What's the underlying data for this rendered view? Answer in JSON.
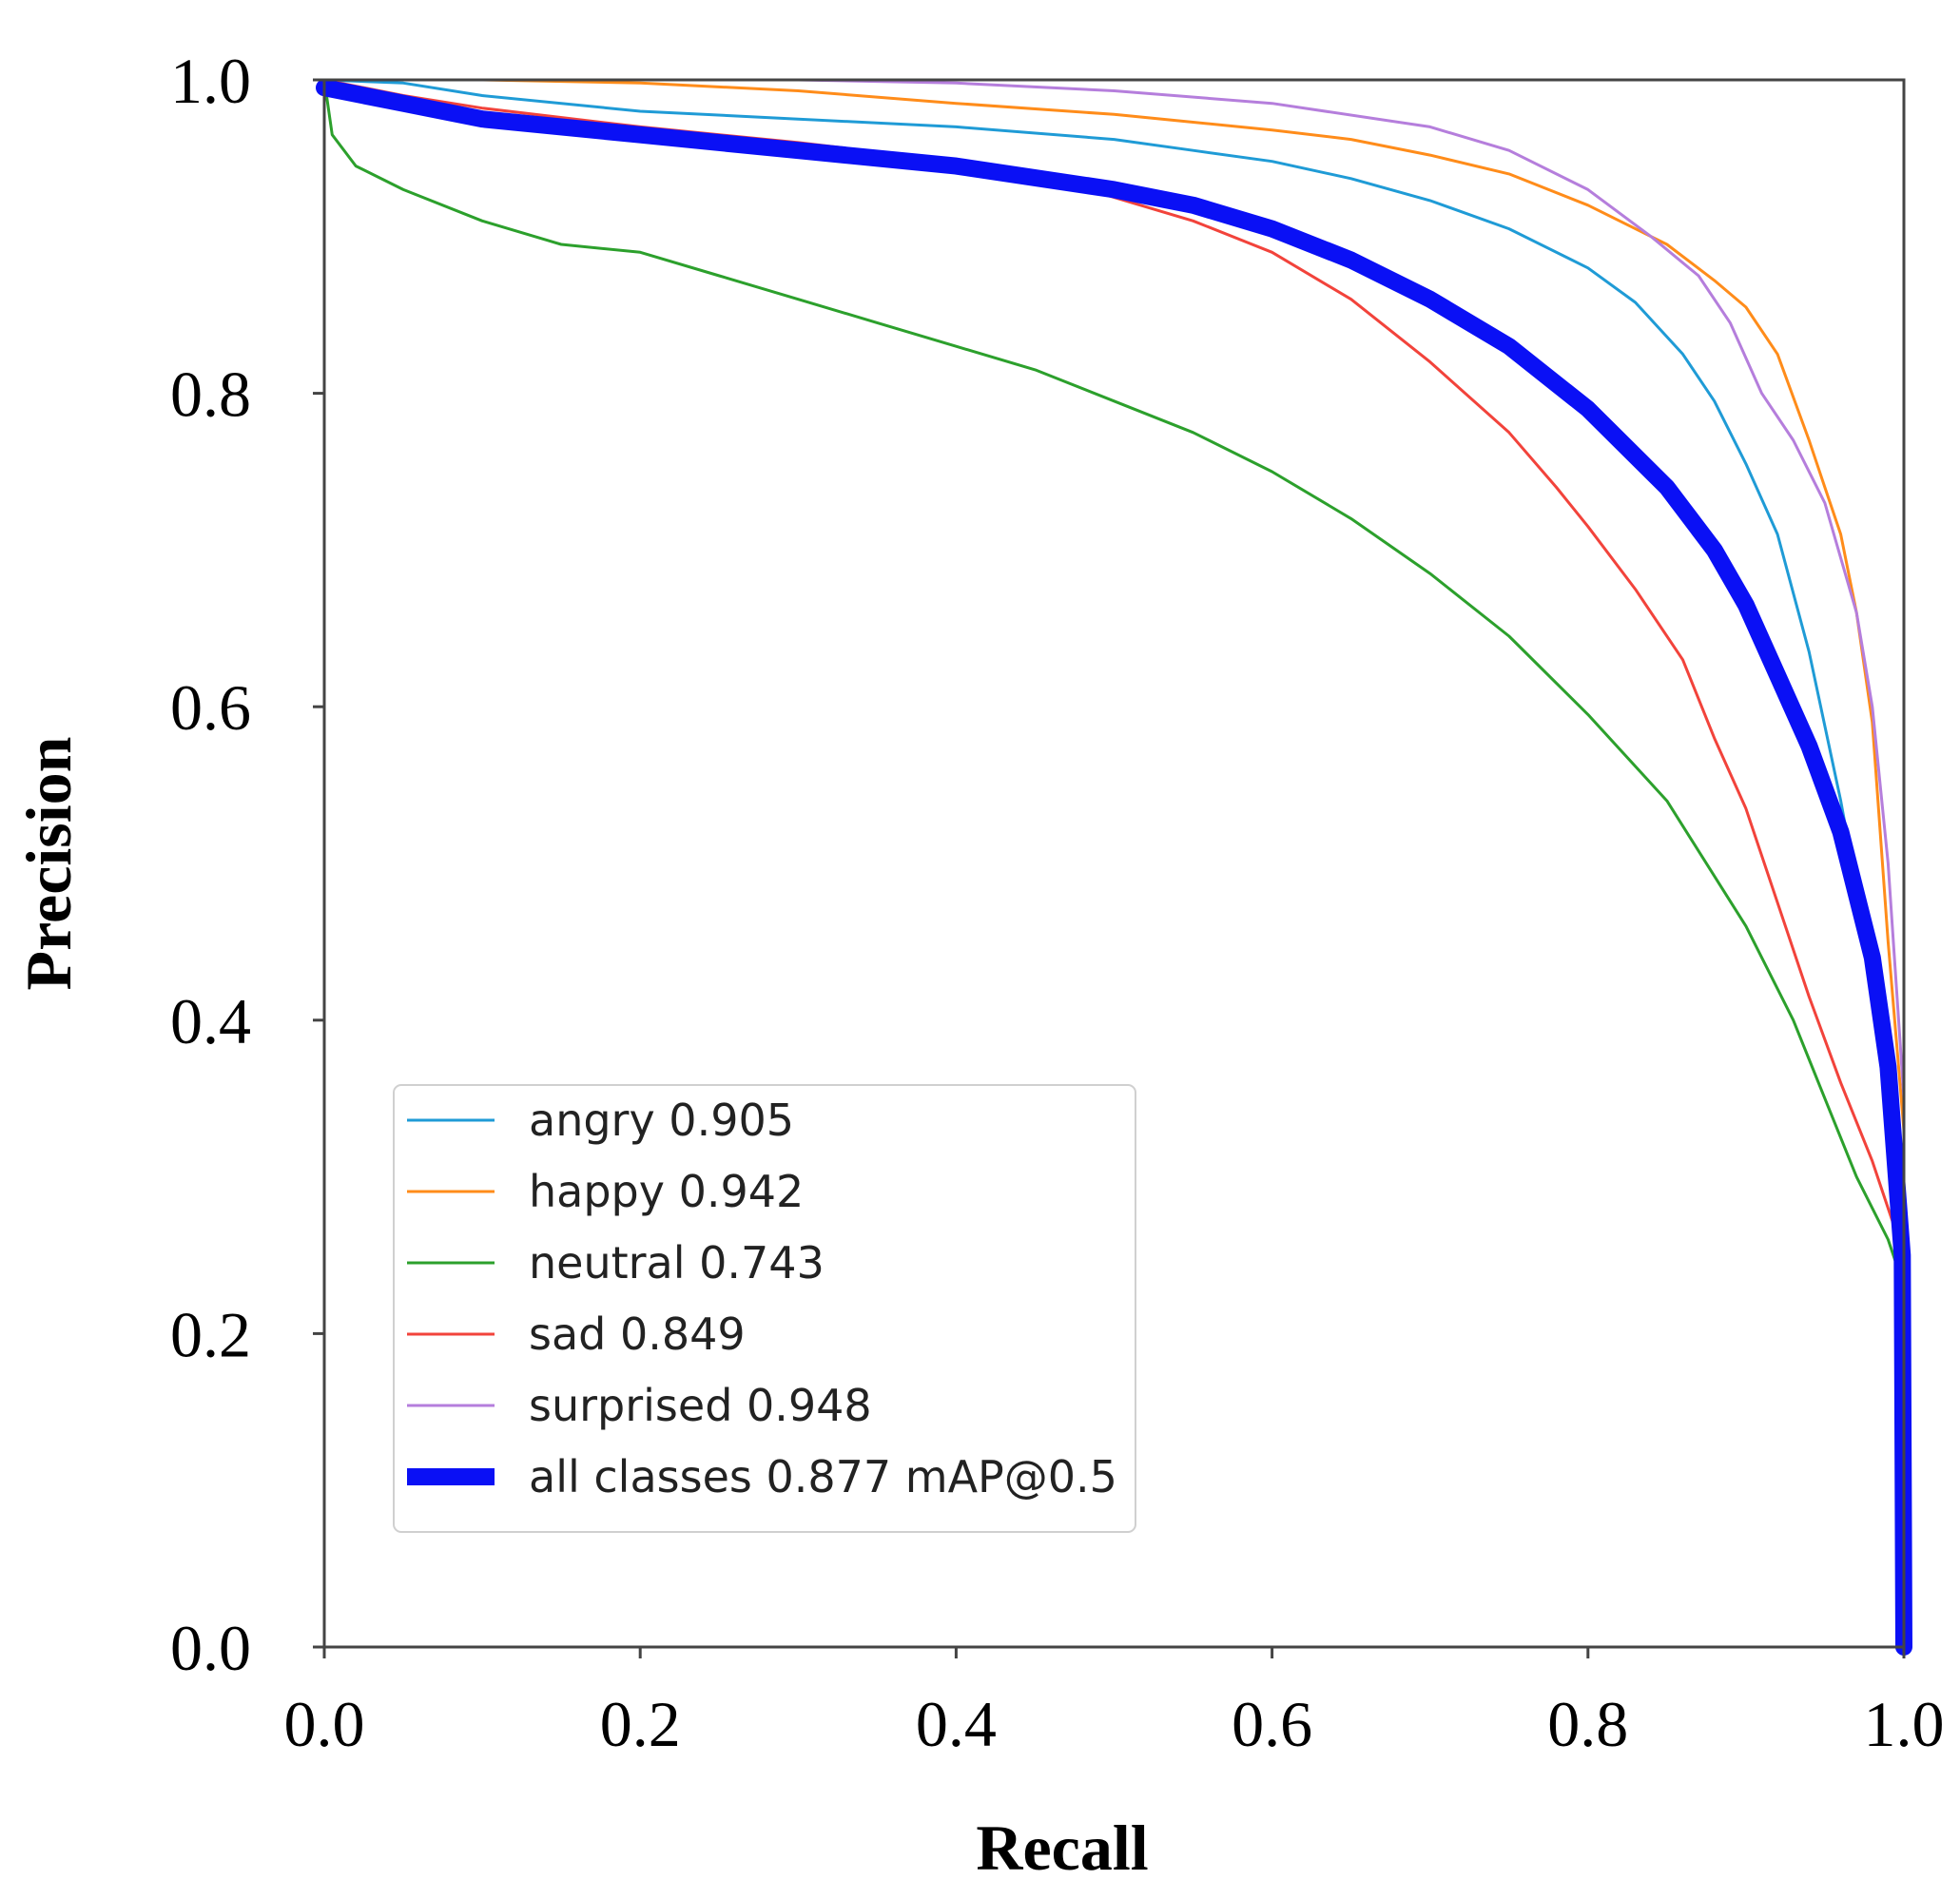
{
  "chart_data": {
    "type": "line",
    "title": "",
    "xlabel": "Recall",
    "ylabel": "Precision",
    "xlim": [
      0.0,
      1.0
    ],
    "ylim": [
      0.0,
      1.0
    ],
    "xticks": [
      "0.0",
      "0.2",
      "0.4",
      "0.6",
      "0.8",
      "1.0"
    ],
    "yticks": [
      "0.0",
      "0.2",
      "0.4",
      "0.6",
      "0.8",
      "1.0"
    ],
    "grid": false,
    "legend_position": "lower-left",
    "series": [
      {
        "name": "angry 0.905",
        "color": "#1f9bd6",
        "width": 1,
        "x": [
          0.0,
          0.05,
          0.1,
          0.2,
          0.3,
          0.4,
          0.5,
          0.55,
          0.6,
          0.65,
          0.7,
          0.75,
          0.8,
          0.83,
          0.86,
          0.88,
          0.9,
          0.92,
          0.94,
          0.96,
          0.98,
          0.99,
          1.0
        ],
        "y": [
          1.0,
          0.998,
          0.99,
          0.98,
          0.975,
          0.97,
          0.962,
          0.955,
          0.948,
          0.937,
          0.923,
          0.905,
          0.88,
          0.858,
          0.825,
          0.795,
          0.755,
          0.71,
          0.635,
          0.54,
          0.43,
          0.37,
          0.3
        ]
      },
      {
        "name": "happy 0.942",
        "color": "#ff8c1a",
        "width": 1,
        "x": [
          0.0,
          0.1,
          0.2,
          0.3,
          0.4,
          0.5,
          0.6,
          0.65,
          0.7,
          0.75,
          0.8,
          0.85,
          0.88,
          0.9,
          0.92,
          0.94,
          0.95,
          0.96,
          0.97,
          0.98,
          0.99,
          1.0
        ],
        "y": [
          1.0,
          1.0,
          0.998,
          0.993,
          0.985,
          0.978,
          0.968,
          0.962,
          0.952,
          0.94,
          0.92,
          0.895,
          0.872,
          0.855,
          0.825,
          0.77,
          0.74,
          0.71,
          0.66,
          0.59,
          0.45,
          0.33
        ]
      },
      {
        "name": "neutral 0.743",
        "color": "#2ca02c",
        "width": 1,
        "x": [
          0.0,
          0.005,
          0.02,
          0.05,
          0.1,
          0.15,
          0.2,
          0.25,
          0.3,
          0.35,
          0.4,
          0.45,
          0.5,
          0.55,
          0.6,
          0.65,
          0.7,
          0.75,
          0.8,
          0.85,
          0.9,
          0.93,
          0.95,
          0.97,
          0.99,
          1.0
        ],
        "y": [
          1.0,
          0.965,
          0.945,
          0.93,
          0.91,
          0.895,
          0.89,
          0.875,
          0.86,
          0.845,
          0.83,
          0.815,
          0.795,
          0.775,
          0.75,
          0.72,
          0.685,
          0.645,
          0.595,
          0.54,
          0.46,
          0.4,
          0.35,
          0.3,
          0.26,
          0.23
        ]
      },
      {
        "name": "sad 0.849",
        "color": "#f2433b",
        "width": 1,
        "x": [
          0.0,
          0.05,
          0.1,
          0.2,
          0.3,
          0.4,
          0.45,
          0.5,
          0.55,
          0.6,
          0.65,
          0.7,
          0.75,
          0.78,
          0.8,
          0.83,
          0.86,
          0.88,
          0.9,
          0.92,
          0.94,
          0.96,
          0.98,
          0.99,
          1.0
        ],
        "y": [
          1.0,
          0.99,
          0.982,
          0.97,
          0.96,
          0.948,
          0.94,
          0.925,
          0.91,
          0.89,
          0.86,
          0.82,
          0.775,
          0.74,
          0.715,
          0.675,
          0.63,
          0.58,
          0.535,
          0.475,
          0.415,
          0.36,
          0.31,
          0.28,
          0.25
        ]
      },
      {
        "name": "surprised 0.948",
        "color": "#b57edc",
        "width": 1,
        "x": [
          0.0,
          0.1,
          0.2,
          0.3,
          0.4,
          0.5,
          0.6,
          0.7,
          0.75,
          0.8,
          0.84,
          0.87,
          0.89,
          0.91,
          0.93,
          0.95,
          0.97,
          0.98,
          0.99,
          1.0
        ],
        "y": [
          1.0,
          1.0,
          1.0,
          1.0,
          0.998,
          0.993,
          0.985,
          0.97,
          0.955,
          0.93,
          0.9,
          0.875,
          0.845,
          0.8,
          0.77,
          0.73,
          0.66,
          0.6,
          0.5,
          0.35
        ]
      },
      {
        "name": "all classes 0.877 mAP@0.5",
        "color": "#0a10f5",
        "width": 6,
        "x": [
          0.0,
          0.05,
          0.1,
          0.2,
          0.3,
          0.4,
          0.5,
          0.55,
          0.6,
          0.65,
          0.7,
          0.75,
          0.8,
          0.85,
          0.88,
          0.9,
          0.92,
          0.94,
          0.96,
          0.98,
          0.99,
          0.999,
          1.0
        ],
        "y": [
          0.995,
          0.985,
          0.975,
          0.965,
          0.955,
          0.945,
          0.93,
          0.92,
          0.905,
          0.885,
          0.86,
          0.83,
          0.79,
          0.74,
          0.7,
          0.665,
          0.62,
          0.575,
          0.52,
          0.44,
          0.37,
          0.25,
          0.0
        ]
      }
    ]
  }
}
